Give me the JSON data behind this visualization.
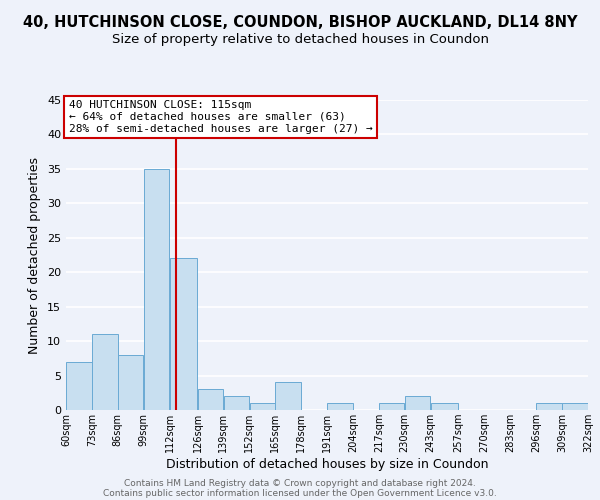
{
  "title": "40, HUTCHINSON CLOSE, COUNDON, BISHOP AUCKLAND, DL14 8NY",
  "subtitle": "Size of property relative to detached houses in Coundon",
  "xlabel": "Distribution of detached houses by size in Coundon",
  "ylabel": "Number of detached properties",
  "bar_edges": [
    60,
    73,
    86,
    99,
    112,
    126,
    139,
    152,
    165,
    178,
    191,
    204,
    217,
    230,
    243,
    257,
    270,
    283,
    296,
    309,
    322
  ],
  "bar_heights": [
    7,
    11,
    8,
    35,
    22,
    3,
    2,
    1,
    4,
    0,
    1,
    0,
    1,
    2,
    1,
    0,
    0,
    0,
    1,
    1
  ],
  "bar_color": "#c8dff0",
  "bar_edge_color": "#6aaad4",
  "vline_color": "#cc0000",
  "vline_x": 115,
  "annotation_title": "40 HUTCHINSON CLOSE: 115sqm",
  "annotation_line1": "← 64% of detached houses are smaller (63)",
  "annotation_line2": "28% of semi-detached houses are larger (27) →",
  "annotation_box_color": "#ffffff",
  "annotation_box_edge_color": "#cc0000",
  "ylim": [
    0,
    45
  ],
  "xlim": [
    60,
    322
  ],
  "tick_labels": [
    "60sqm",
    "73sqm",
    "86sqm",
    "99sqm",
    "112sqm",
    "126sqm",
    "139sqm",
    "152sqm",
    "165sqm",
    "178sqm",
    "191sqm",
    "204sqm",
    "217sqm",
    "230sqm",
    "243sqm",
    "257sqm",
    "270sqm",
    "283sqm",
    "296sqm",
    "309sqm",
    "322sqm"
  ],
  "tick_positions": [
    60,
    73,
    86,
    99,
    112,
    126,
    139,
    152,
    165,
    178,
    191,
    204,
    217,
    230,
    243,
    257,
    270,
    283,
    296,
    309,
    322
  ],
  "footer1": "Contains HM Land Registry data © Crown copyright and database right 2024.",
  "footer2": "Contains public sector information licensed under the Open Government Licence v3.0.",
  "background_color": "#eef2fa",
  "grid_color": "#ffffff",
  "title_fontsize": 10.5,
  "subtitle_fontsize": 9.5,
  "axis_label_fontsize": 9,
  "tick_fontsize": 7,
  "annotation_fontsize": 8,
  "footer_fontsize": 6.5,
  "footer_color": "#666666"
}
